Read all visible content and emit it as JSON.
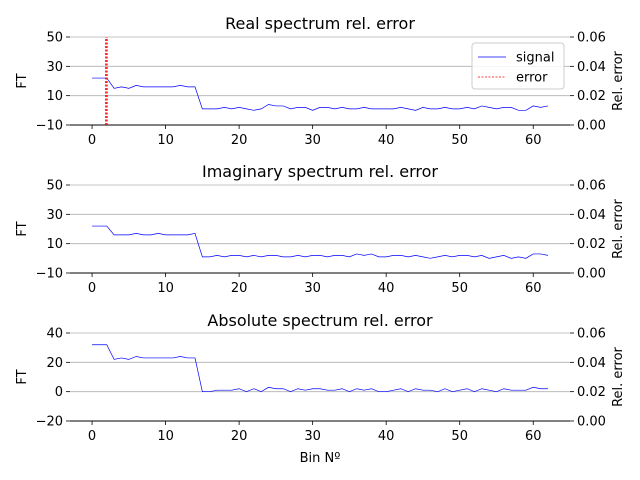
{
  "xlabel": "Bin Nº",
  "legend": {
    "signal": "signal",
    "error": "error"
  },
  "colors": {
    "signal": "#0000ff",
    "error": "#ff0000",
    "grid": "#b0b0b0"
  },
  "chart_data": [
    {
      "type": "line",
      "title": "Real spectrum rel. error",
      "ylabel": "FT",
      "ylabel_right": "Rel. error",
      "ylim": [
        -10,
        50
      ],
      "yticks": [
        -10,
        10,
        30,
        50
      ],
      "ylim_right": [
        0,
        0.06
      ],
      "yticks_right": [
        "0.00",
        "0.02",
        "0.04",
        "0.06"
      ],
      "xlim": [
        -3,
        65
      ],
      "xticks": [
        0,
        10,
        20,
        30,
        40,
        50,
        60
      ],
      "legend_position": "top-right",
      "series": [
        {
          "name": "signal",
          "x_start": 0,
          "values": [
            22,
            22,
            22,
            15,
            16,
            15,
            17,
            16,
            16,
            16,
            16,
            16,
            17,
            16,
            16,
            1,
            1,
            1,
            2,
            1,
            2,
            1,
            0,
            1,
            4,
            3,
            3,
            1,
            2,
            2,
            0,
            2,
            2,
            1,
            2,
            1,
            1,
            2,
            1,
            1,
            1,
            1,
            2,
            1,
            0,
            2,
            1,
            1,
            2,
            1,
            1,
            2,
            1,
            3,
            2,
            1,
            2,
            2,
            0,
            0,
            3,
            2,
            3
          ]
        },
        {
          "name": "error",
          "x": [
            1.8,
            1.9,
            2.0,
            2.1
          ],
          "values": [
            0.06,
            0.06,
            0.06,
            0.06
          ]
        }
      ]
    },
    {
      "type": "line",
      "title": "Imaginary spectrum rel. error",
      "ylabel": "FT",
      "ylabel_right": "Rel. error",
      "ylim": [
        -10,
        50
      ],
      "yticks": [
        -10,
        10,
        30,
        50
      ],
      "ylim_right": [
        0,
        0.06
      ],
      "yticks_right": [
        "0.00",
        "0.02",
        "0.04",
        "0.06"
      ],
      "xlim": [
        -3,
        65
      ],
      "xticks": [
        0,
        10,
        20,
        30,
        40,
        50,
        60
      ],
      "series": [
        {
          "name": "signal",
          "x_start": 0,
          "values": [
            22,
            22,
            22,
            16,
            16,
            16,
            17,
            16,
            16,
            17,
            16,
            16,
            16,
            16,
            17,
            1,
            1,
            2,
            1,
            2,
            2,
            1,
            2,
            1,
            2,
            2,
            1,
            1,
            2,
            1,
            2,
            2,
            1,
            2,
            2,
            1,
            3,
            2,
            3,
            1,
            1,
            2,
            2,
            1,
            2,
            1,
            0,
            1,
            2,
            1,
            2,
            2,
            1,
            2,
            0,
            1,
            2,
            0,
            1,
            0,
            3,
            3,
            2
          ]
        }
      ]
    },
    {
      "type": "line",
      "title": "Absolute spectrum rel. error",
      "ylabel": "FT",
      "ylabel_right": "Rel. error",
      "ylim": [
        -20,
        40
      ],
      "yticks": [
        -20,
        0,
        20,
        40
      ],
      "ylim_right": [
        0,
        0.06
      ],
      "yticks_right": [
        "0.00",
        "0.02",
        "0.04",
        "0.06"
      ],
      "xlim": [
        -3,
        65
      ],
      "xticks": [
        0,
        10,
        20,
        30,
        40,
        50,
        60
      ],
      "series": [
        {
          "name": "signal",
          "x_start": 0,
          "values": [
            32,
            32,
            32,
            22,
            23,
            22,
            24,
            23,
            23,
            23,
            23,
            23,
            24,
            23,
            23,
            0,
            0,
            1,
            1,
            1,
            2,
            0,
            2,
            0,
            3,
            2,
            2,
            0,
            2,
            1,
            2,
            2,
            1,
            1,
            2,
            0,
            2,
            1,
            2,
            0,
            0,
            1,
            2,
            0,
            2,
            1,
            1,
            0,
            2,
            0,
            1,
            2,
            0,
            2,
            1,
            0,
            2,
            1,
            1,
            1,
            3,
            2,
            2
          ]
        }
      ]
    }
  ]
}
